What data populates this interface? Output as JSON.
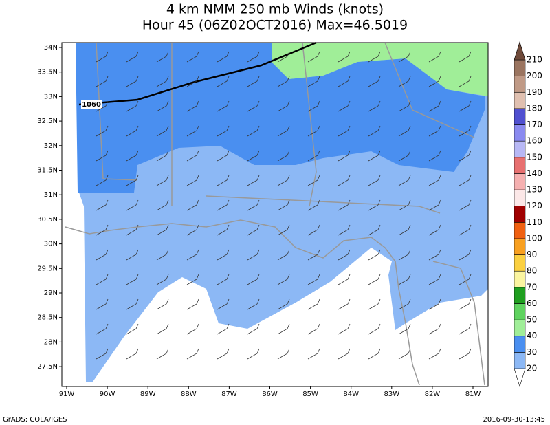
{
  "header": {
    "title": "4 km NMM 250 mb Winds (knots)",
    "subtitle": "Hour 45 (06Z02OCT2016) Max=46.5019"
  },
  "map": {
    "lat_labels": [
      "34N",
      "33.5N",
      "33N",
      "32.5N",
      "32N",
      "31.5N",
      "31N",
      "30.5N",
      "30N",
      "29.5N",
      "29N",
      "28.5N",
      "28N",
      "27.5N"
    ],
    "lon_labels": [
      "91W",
      "90W",
      "89W",
      "88W",
      "87W",
      "86W",
      "85W",
      "84W",
      "83W",
      "82W",
      "81W"
    ],
    "contour_label": "1060"
  },
  "colorbar": {
    "levels": [
      20,
      30,
      40,
      50,
      60,
      70,
      80,
      90,
      100,
      110,
      120,
      130,
      140,
      150,
      160,
      170,
      180,
      190,
      200,
      210
    ],
    "colors": [
      "#ffffff",
      "#8cb8f5",
      "#4a8ff0",
      "#a0ee98",
      "#5fd35f",
      "#1f9f1f",
      "#fbf5a0",
      "#fbd040",
      "#f8a020",
      "#f06010",
      "#a00000",
      "#fce8e8",
      "#f5b0b0",
      "#e87070",
      "#b8b8f5",
      "#8a8af0",
      "#5050d0",
      "#e0c0b0",
      "#c09a86",
      "#9b7560",
      "#6f4a3a"
    ]
  },
  "footer": {
    "left": "GrADS: COLA/IGES",
    "right": "2016-09-30-13:45"
  }
}
